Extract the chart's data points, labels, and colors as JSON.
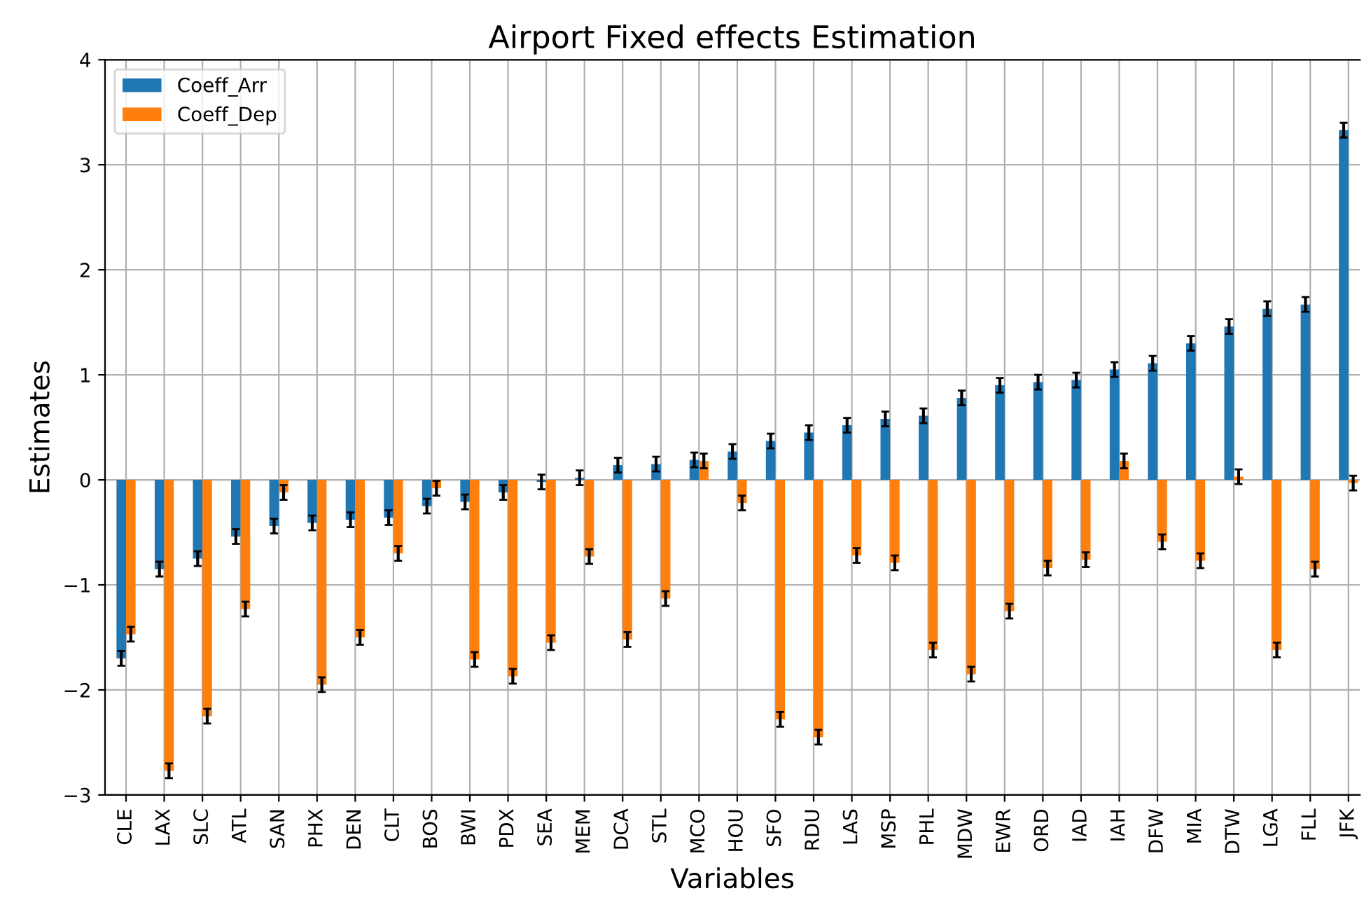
{
  "chart_data": {
    "type": "bar",
    "title": "Airport Fixed effects Estimation",
    "xlabel": "Variables",
    "ylabel": "Estimates",
    "categories": [
      "CLE",
      "LAX",
      "SLC",
      "ATL",
      "SAN",
      "PHX",
      "DEN",
      "CLT",
      "BOS",
      "BWI",
      "PDX",
      "SEA",
      "MEM",
      "DCA",
      "STL",
      "MCO",
      "HOU",
      "SFO",
      "RDU",
      "LAS",
      "MSP",
      "PHL",
      "MDW",
      "EWR",
      "ORD",
      "IAD",
      "IAH",
      "DFW",
      "MIA",
      "DTW",
      "LGA",
      "FLL",
      "JFK"
    ],
    "series": [
      {
        "name": "Coeff_Arr",
        "color": "#1f77b4",
        "values": [
          -1.7,
          -0.85,
          -0.75,
          -0.54,
          -0.44,
          -0.41,
          -0.38,
          -0.36,
          -0.25,
          -0.21,
          -0.12,
          -0.02,
          0.02,
          0.14,
          0.15,
          0.19,
          0.27,
          0.37,
          0.45,
          0.52,
          0.58,
          0.61,
          0.78,
          0.9,
          0.93,
          0.95,
          1.05,
          1.11,
          1.3,
          1.46,
          1.63,
          1.67,
          3.33
        ],
        "errors": [
          0.07,
          0.07,
          0.07,
          0.07,
          0.07,
          0.07,
          0.07,
          0.07,
          0.07,
          0.07,
          0.07,
          0.07,
          0.07,
          0.07,
          0.07,
          0.07,
          0.07,
          0.07,
          0.07,
          0.07,
          0.07,
          0.07,
          0.07,
          0.07,
          0.07,
          0.07,
          0.07,
          0.07,
          0.07,
          0.07,
          0.07,
          0.07,
          0.07
        ]
      },
      {
        "name": "Coeff_Dep",
        "color": "#ff7f0e",
        "values": [
          -1.47,
          -2.77,
          -2.25,
          -1.23,
          -0.12,
          -1.95,
          -1.5,
          -0.7,
          -0.08,
          -1.71,
          -1.87,
          -1.55,
          -0.73,
          -1.52,
          -1.13,
          0.18,
          -0.22,
          -2.28,
          -2.45,
          -0.72,
          -0.79,
          -1.62,
          -1.85,
          -1.25,
          -0.84,
          -0.76,
          0.18,
          -0.59,
          -0.77,
          0.03,
          -1.62,
          -0.85,
          -0.03
        ],
        "errors": [
          0.07,
          0.07,
          0.07,
          0.07,
          0.07,
          0.07,
          0.07,
          0.07,
          0.07,
          0.07,
          0.07,
          0.07,
          0.07,
          0.07,
          0.07,
          0.07,
          0.07,
          0.07,
          0.07,
          0.07,
          0.07,
          0.07,
          0.07,
          0.07,
          0.07,
          0.07,
          0.07,
          0.07,
          0.07,
          0.07,
          0.07,
          0.07,
          0.07
        ]
      }
    ],
    "ylim": [
      -3,
      4
    ],
    "yticks": [
      -3,
      -2,
      -1,
      0,
      1,
      2,
      3,
      4
    ],
    "grid": true,
    "legend": "top left"
  }
}
